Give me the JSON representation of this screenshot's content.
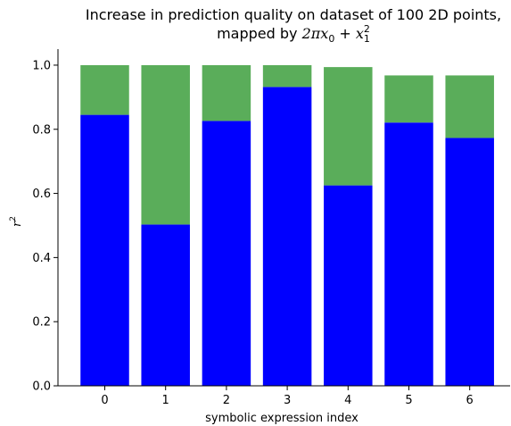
{
  "chart_data": {
    "type": "bar",
    "stacked": true,
    "title_line1": "Increase in prediction quality on dataset of 100 2D points,",
    "title_line2_prefix": "mapped by ",
    "title_formula": {
      "coef": "2",
      "pi": "π",
      "x": "x",
      "sub0": "0",
      "plus": " + ",
      "sub1": "1",
      "sup": "2"
    },
    "xlabel": "symbolic expression index",
    "ylabel": "r",
    "ylabel_sup": "2",
    "ylim": [
      0,
      1.05
    ],
    "yticks": [
      0.0,
      0.2,
      0.4,
      0.6,
      0.8,
      1.0
    ],
    "ytick_labels": [
      "0.0",
      "0.2",
      "0.4",
      "0.6",
      "0.8",
      "1.0"
    ],
    "categories": [
      "0",
      "1",
      "2",
      "3",
      "4",
      "5",
      "6"
    ],
    "series": [
      {
        "values": [
          0.845,
          0.503,
          0.826,
          0.932,
          0.625,
          0.821,
          0.773
        ],
        "color": "#0000ff"
      },
      {
        "values": [
          0.155,
          0.497,
          0.174,
          0.068,
          0.369,
          0.147,
          0.195
        ],
        "color": "#5aad5a"
      }
    ]
  }
}
